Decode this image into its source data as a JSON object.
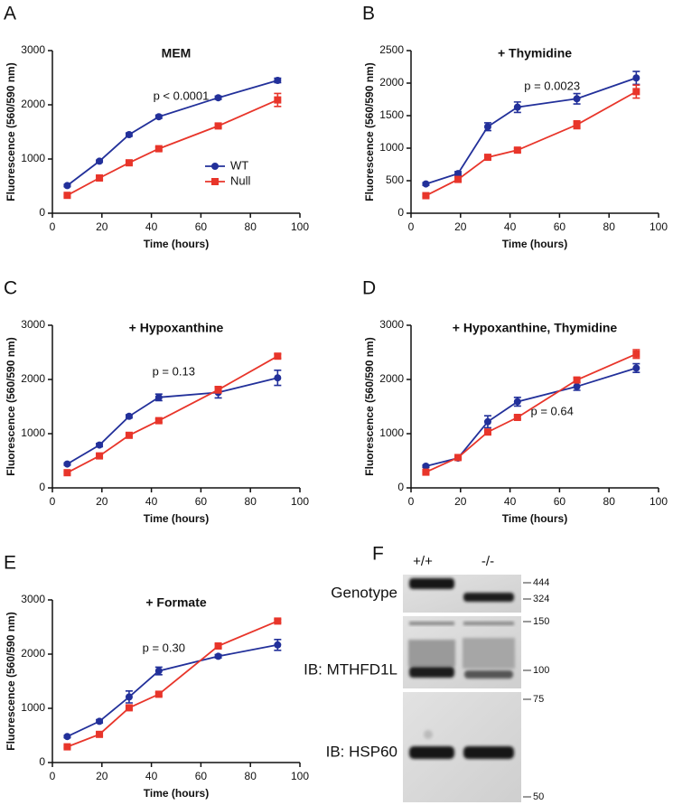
{
  "chart_data": [
    {
      "type": "line",
      "panel": "A",
      "title": "MEM",
      "annotation": "p < 0.0001",
      "xlabel": "Time (hours)",
      "ylabel": "Fluorescence (560/590 nm)",
      "x": [
        6,
        19,
        31,
        43,
        67,
        91
      ],
      "xlim": [
        0,
        100
      ],
      "xticks": [
        0,
        20,
        40,
        60,
        80,
        100
      ],
      "ylim": [
        0,
        3000
      ],
      "yticks": [
        0,
        1000,
        2000,
        3000
      ],
      "legend": "lower right",
      "series": [
        {
          "name": "WT",
          "color": "#22309a",
          "marker": "circle",
          "values": [
            510,
            960,
            1450,
            1780,
            2130,
            2450
          ],
          "errors": [
            20,
            20,
            30,
            30,
            30,
            40
          ]
        },
        {
          "name": "Null",
          "color": "#e8352a",
          "marker": "square",
          "values": [
            330,
            650,
            930,
            1190,
            1610,
            2090
          ],
          "errors": [
            20,
            30,
            30,
            30,
            30,
            120
          ]
        }
      ]
    },
    {
      "type": "line",
      "panel": "B",
      "title": "+ Thymidine",
      "annotation": "p = 0.0023",
      "xlabel": "Time (hours)",
      "ylabel": "Fluorescence (560/590 nm)",
      "x": [
        6,
        19,
        31,
        43,
        67,
        91
      ],
      "xlim": [
        0,
        100
      ],
      "xticks": [
        0,
        20,
        40,
        60,
        80,
        100
      ],
      "ylim": [
        0,
        2500
      ],
      "yticks": [
        0,
        500,
        1000,
        1500,
        2000,
        2500
      ],
      "series": [
        {
          "color": "#22309a",
          "marker": "circle",
          "values": [
            450,
            610,
            1330,
            1630,
            1760,
            2080
          ],
          "errors": [
            20,
            30,
            60,
            80,
            80,
            100
          ]
        },
        {
          "color": "#e8352a",
          "marker": "square",
          "values": [
            270,
            520,
            860,
            970,
            1360,
            1870
          ],
          "errors": [
            20,
            30,
            30,
            30,
            60,
            100
          ]
        }
      ]
    },
    {
      "type": "line",
      "panel": "C",
      "title": "+ Hypoxanthine",
      "annotation": "p = 0.13",
      "xlabel": "Time (hours)",
      "ylabel": "Fluorescence (560/590 nm)",
      "x": [
        6,
        19,
        31,
        43,
        67,
        91
      ],
      "xlim": [
        0,
        100
      ],
      "xticks": [
        0,
        20,
        40,
        60,
        80,
        100
      ],
      "ylim": [
        0,
        3000
      ],
      "yticks": [
        0,
        1000,
        2000,
        3000
      ],
      "series": [
        {
          "color": "#22309a",
          "marker": "circle",
          "values": [
            440,
            790,
            1320,
            1670,
            1760,
            2030
          ],
          "errors": [
            20,
            30,
            30,
            60,
            100,
            140
          ]
        },
        {
          "color": "#e8352a",
          "marker": "square",
          "values": [
            280,
            590,
            970,
            1240,
            1810,
            2430
          ],
          "errors": [
            20,
            30,
            30,
            30,
            60,
            40
          ]
        }
      ]
    },
    {
      "type": "line",
      "panel": "D",
      "title": "+ Hypoxanthine, Thymidine",
      "annotation": "p = 0.64",
      "xlabel": "Time (hours)",
      "ylabel": "Fluorescence (560/590 nm)",
      "x": [
        6,
        19,
        31,
        43,
        67,
        91
      ],
      "xlim": [
        0,
        100
      ],
      "xticks": [
        0,
        20,
        40,
        60,
        80,
        100
      ],
      "ylim": [
        0,
        3000
      ],
      "yticks": [
        0,
        1000,
        2000,
        3000
      ],
      "series": [
        {
          "color": "#22309a",
          "marker": "circle",
          "values": [
            400,
            550,
            1220,
            1590,
            1870,
            2210
          ],
          "errors": [
            20,
            20,
            110,
            80,
            70,
            80
          ]
        },
        {
          "color": "#e8352a",
          "marker": "square",
          "values": [
            290,
            560,
            1030,
            1300,
            1990,
            2470
          ],
          "errors": [
            20,
            20,
            30,
            30,
            40,
            80
          ]
        }
      ]
    },
    {
      "type": "line",
      "panel": "E",
      "title": "+ Formate",
      "annotation": "p = 0.30",
      "xlabel": "Time (hours)",
      "ylabel": "Fluorescence (560/590 nm)",
      "x": [
        6,
        19,
        31,
        43,
        67,
        91
      ],
      "xlim": [
        0,
        100
      ],
      "xticks": [
        0,
        20,
        40,
        60,
        80,
        100
      ],
      "ylim": [
        0,
        3000
      ],
      "yticks": [
        0,
        1000,
        2000,
        3000
      ],
      "series": [
        {
          "color": "#22309a",
          "marker": "circle",
          "values": [
            480,
            760,
            1210,
            1690,
            1960,
            2170
          ],
          "errors": [
            20,
            30,
            110,
            70,
            30,
            100
          ]
        },
        {
          "color": "#e8352a",
          "marker": "square",
          "values": [
            290,
            520,
            1010,
            1260,
            2150,
            2610
          ],
          "errors": [
            20,
            30,
            30,
            30,
            30,
            30
          ]
        }
      ]
    }
  ],
  "panel_f": {
    "letter": "F",
    "lanes": [
      "+/+",
      "-/-"
    ],
    "blots": [
      {
        "label": "Genotype",
        "markers": [
          444,
          324
        ]
      },
      {
        "label": "IB: MTHFD1L",
        "markers": [
          150,
          100
        ]
      },
      {
        "label": "IB: HSP60",
        "markers": [
          75,
          50
        ]
      }
    ]
  }
}
